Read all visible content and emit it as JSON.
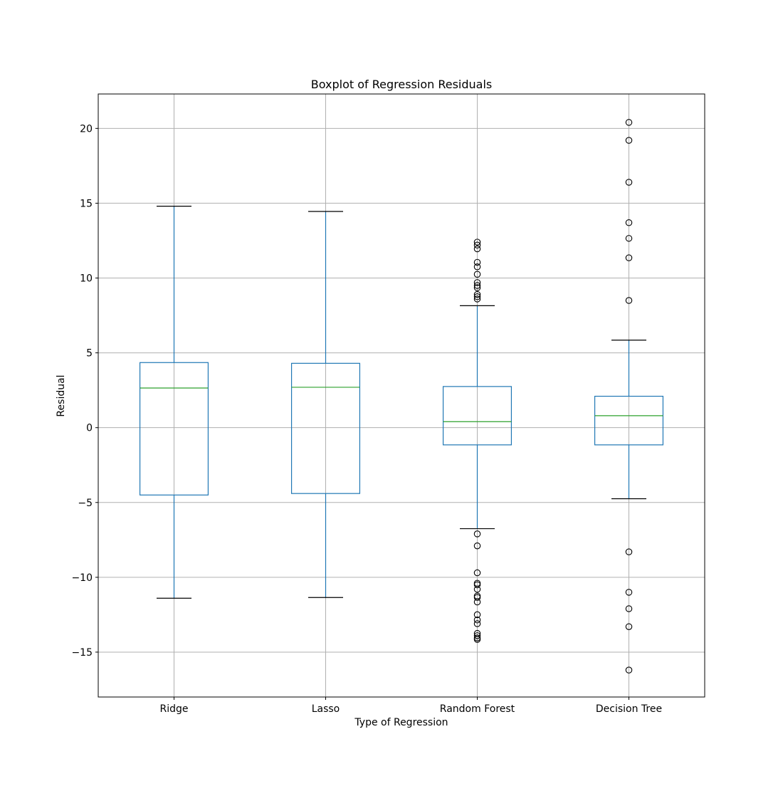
{
  "chart_data": {
    "type": "boxplot",
    "title": "Boxplot of Regression Residuals",
    "xlabel": "Type of Regression",
    "ylabel": "Residual",
    "ylim": [
      -18.0,
      22.3
    ],
    "yticks": [
      -15,
      -10,
      -5,
      0,
      5,
      10,
      15,
      20
    ],
    "ytick_labels": [
      "−15",
      "−10",
      "−5",
      "0",
      "5",
      "10",
      "15",
      "20"
    ],
    "grid": true,
    "categories": [
      "Ridge",
      "Lasso",
      "Random Forest",
      "Decision Tree"
    ],
    "boxes": [
      {
        "category": "Ridge",
        "whisker_low": -11.4,
        "q1": -4.5,
        "median": 2.65,
        "q3": 4.35,
        "whisker_high": 14.8,
        "outliers": []
      },
      {
        "category": "Lasso",
        "whisker_low": -11.35,
        "q1": -4.4,
        "median": 2.7,
        "q3": 4.3,
        "whisker_high": 14.45,
        "outliers": []
      },
      {
        "category": "Random Forest",
        "whisker_low": -6.75,
        "q1": -1.15,
        "median": 0.4,
        "q3": 2.75,
        "whisker_high": 8.15,
        "outliers": [
          12.4,
          12.2,
          11.95,
          11.05,
          10.75,
          10.25,
          9.7,
          9.5,
          9.35,
          8.9,
          8.75,
          8.6,
          -7.1,
          -7.9,
          -9.7,
          -10.4,
          -10.5,
          -10.8,
          -11.25,
          -11.35,
          -11.65,
          -12.5,
          -12.85,
          -13.1,
          -13.75,
          -13.9,
          -14.05,
          -14.15
        ]
      },
      {
        "category": "Decision Tree",
        "whisker_low": -4.75,
        "q1": -1.15,
        "median": 0.8,
        "q3": 2.1,
        "whisker_high": 5.85,
        "outliers": [
          20.4,
          19.2,
          16.4,
          13.7,
          12.65,
          11.35,
          8.5,
          -8.3,
          -11.0,
          -12.1,
          -13.3,
          -16.2
        ]
      }
    ],
    "colors": {
      "box": "#1f77b4",
      "median": "#2ca02c",
      "whisker_cap": "#000000",
      "outlier": "#000000",
      "grid": "#b0b0b0"
    }
  }
}
